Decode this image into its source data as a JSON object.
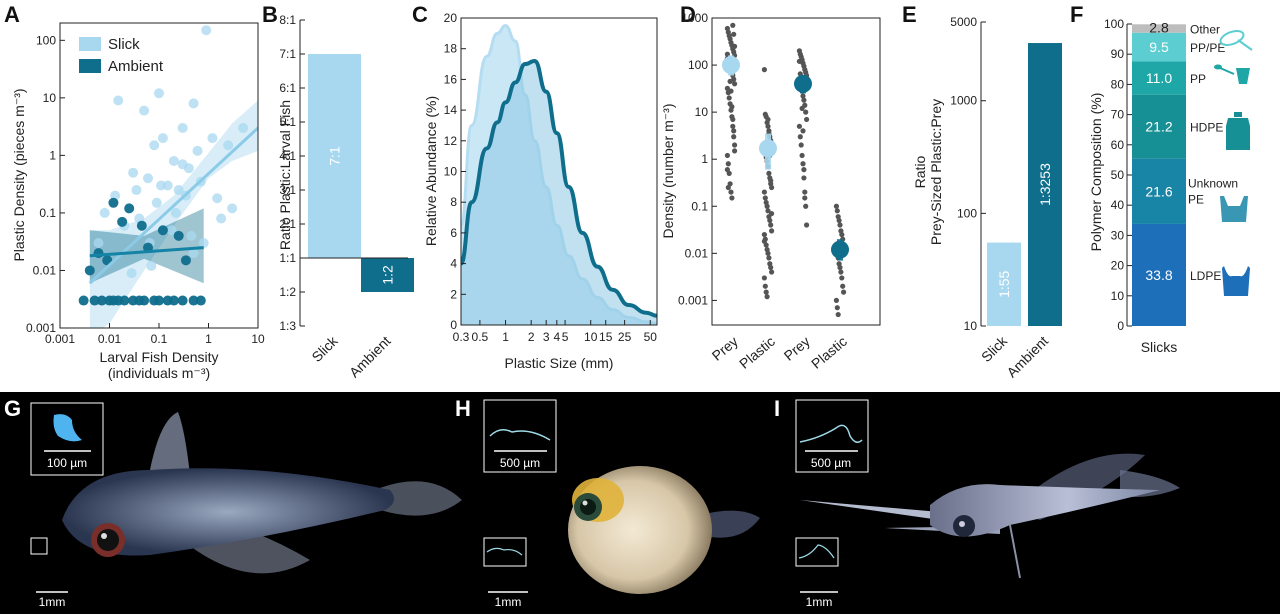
{
  "panel_letters": [
    "A",
    "B",
    "C",
    "D",
    "E",
    "F",
    "G",
    "H",
    "I"
  ],
  "colors": {
    "slick": "#a8d8f0",
    "ambient": "#0f6e8c",
    "point_gray": "#555555"
  },
  "chart_data": [
    {
      "id": "A",
      "type": "scatter",
      "xlabel": "Larval Fish Density",
      "xlabel_unit": "(individuals m⁻³)",
      "ylabel": "Plastic Density (pieces m⁻³)",
      "xscale": "log",
      "yscale": "log",
      "xlim": [
        0.001,
        10
      ],
      "ylim": [
        0.001,
        200
      ],
      "xticks": [
        "0.001",
        "0.01",
        "0.1",
        "1",
        "10"
      ],
      "yticks": [
        "0.001",
        "0.01",
        "0.1",
        "1",
        "10",
        "100"
      ],
      "legend": [
        "Slick",
        "Ambient"
      ],
      "series": [
        {
          "name": "Slick",
          "x": [
            0.9,
            0.015,
            0.05,
            0.1,
            0.5,
            0.3,
            0.12,
            0.08,
            0.2,
            0.4,
            0.6,
            1.2,
            2.5,
            5,
            0.03,
            0.06,
            0.15,
            0.25,
            0.35,
            0.7,
            1.5,
            3,
            0.02,
            0.008,
            0.04,
            0.09,
            0.18,
            0.45,
            0.8,
            0.013,
            0.028,
            0.07,
            0.5,
            1.8,
            0.3,
            0.11,
            0.22,
            0.006,
            0.035,
            0.065
          ],
          "y": [
            150,
            9,
            6,
            12,
            8,
            3,
            2,
            1.5,
            0.8,
            0.6,
            1.2,
            2,
            1.5,
            3,
            0.5,
            0.4,
            0.3,
            0.25,
            0.2,
            0.35,
            0.18,
            0.12,
            0.06,
            0.1,
            0.08,
            0.15,
            0.05,
            0.04,
            0.03,
            0.2,
            0.009,
            0.012,
            0.02,
            0.08,
            0.7,
            0.3,
            0.1,
            0.03,
            0.25,
            0.03
          ]
        },
        {
          "name": "Ambient",
          "x": [
            0.003,
            0.005,
            0.007,
            0.01,
            0.012,
            0.015,
            0.02,
            0.03,
            0.04,
            0.05,
            0.08,
            0.1,
            0.15,
            0.2,
            0.3,
            0.5,
            0.7,
            0.012,
            0.025,
            0.006,
            0.009,
            0.06,
            0.12,
            0.25,
            0.018,
            0.004,
            0.045,
            0.35
          ],
          "y": [
            0.003,
            0.003,
            0.003,
            0.003,
            0.003,
            0.003,
            0.003,
            0.003,
            0.003,
            0.003,
            0.003,
            0.003,
            0.003,
            0.003,
            0.003,
            0.003,
            0.003,
            0.15,
            0.12,
            0.02,
            0.015,
            0.025,
            0.05,
            0.04,
            0.07,
            0.01,
            0.06,
            0.015
          ]
        }
      ],
      "fits": [
        {
          "name": "Slick",
          "x": [
            0.004,
            10
          ],
          "y": [
            0.006,
            3
          ]
        },
        {
          "name": "Ambient",
          "x": [
            0.004,
            0.8
          ],
          "y": [
            0.018,
            0.025
          ]
        }
      ]
    },
    {
      "id": "B",
      "type": "bar",
      "ylabel": "Ratio Plastic:Larval Fish",
      "categories": [
        "Slick",
        "Ambient"
      ],
      "values": [
        7,
        -1
      ],
      "bar_labels": [
        "7:1",
        "1:2"
      ],
      "yticks": [
        "8:1",
        "7:1",
        "6:1",
        "5:1",
        "4:1",
        "3:1",
        "2:1",
        "1:1",
        "1:2",
        "1:3"
      ]
    },
    {
      "id": "C",
      "type": "area",
      "xlabel": "Plastic Size (mm)",
      "ylabel": "Relative Abundance (%)",
      "xscale": "log",
      "xlim": [
        0.3,
        60
      ],
      "ylim": [
        0,
        20
      ],
      "xticks": [
        0.3,
        0.5,
        1,
        2,
        3,
        4,
        5,
        10,
        15,
        25,
        50
      ],
      "xtick_labels": [
        "0.3",
        "0.5",
        "1",
        "2",
        "3",
        "4",
        "5",
        "10",
        "15",
        "25",
        "50"
      ],
      "yticks": [
        "0",
        "2",
        "4",
        "6",
        "8",
        "10",
        "12",
        "14",
        "16",
        "18",
        "20"
      ],
      "series": [
        {
          "name": "Slick",
          "x": [
            0.3,
            0.4,
            0.6,
            0.8,
            1,
            1.3,
            1.7,
            2.2,
            3,
            4,
            5.5,
            8,
            12,
            18,
            28,
            45,
            60
          ],
          "y": [
            6.5,
            13,
            17.5,
            19,
            19.5,
            18.5,
            15,
            12,
            9,
            6.5,
            4.5,
            3,
            1.8,
            1,
            0.5,
            0.2,
            0.1
          ]
        },
        {
          "name": "Ambient",
          "x": [
            0.3,
            0.4,
            0.6,
            0.8,
            1,
            1.3,
            1.7,
            2.2,
            3,
            4,
            5.5,
            8,
            12,
            18,
            28,
            45,
            60
          ],
          "y": [
            4,
            8,
            11.5,
            13.2,
            14.5,
            15.8,
            17,
            17.2,
            15.2,
            12.5,
            9,
            6,
            3.8,
            2.3,
            1.3,
            0.8,
            0.6
          ]
        }
      ]
    },
    {
      "id": "D",
      "type": "scatter",
      "ylabel": "Density (number m⁻³)",
      "yscale": "log",
      "ylim": [
        0.0003,
        1000
      ],
      "yticks": [
        "0.001",
        "0.01",
        "0.1",
        "1",
        "10",
        "100",
        "1000"
      ],
      "categories": [
        "Prey",
        "Plastic",
        "Prey",
        "Plastic"
      ],
      "groups": [
        {
          "name": "Slick",
          "category": "Prey",
          "mean": 100,
          "lo": 60,
          "hi": 160,
          "points": [
            600,
            500,
            420,
            360,
            300,
            260,
            220,
            190,
            160,
            140,
            120,
            100,
            90,
            80,
            70,
            60,
            50,
            40,
            32,
            26,
            20,
            15,
            11,
            8,
            5,
            3,
            2,
            1.2,
            0.8,
            0.5,
            0.3,
            0.2,
            0.15,
            700,
            450,
            250,
            170,
            110,
            75,
            45,
            28,
            13,
            7,
            4,
            1.5,
            0.6,
            0.25
          ]
        },
        {
          "name": "Slick",
          "category": "Plastic",
          "mean": 1.7,
          "lo": 0.6,
          "hi": 3.5,
          "points": [
            80,
            9,
            8,
            6,
            5,
            4,
            3,
            2.5,
            2,
            1.7,
            1.4,
            1.1,
            0.9,
            0.7,
            0.5,
            0.4,
            0.3,
            0.25,
            0.2,
            0.15,
            0.12,
            0.1,
            0.08,
            0.06,
            0.05,
            0.04,
            0.03,
            0.025,
            0.02,
            0.015,
            0.012,
            0.01,
            0.008,
            0.006,
            0.005,
            0.004,
            0.003,
            0.002,
            0.0015,
            0.0012,
            7,
            3.5,
            1.2,
            0.35,
            0.07,
            0.018
          ]
        },
        {
          "name": "Ambient",
          "category": "Prey",
          "mean": 40,
          "lo": 25,
          "hi": 60,
          "points": [
            200,
            170,
            150,
            130,
            110,
            95,
            80,
            70,
            60,
            50,
            42,
            35,
            28,
            22,
            18,
            14,
            10,
            7,
            5,
            3,
            2,
            1.2,
            0.8,
            0.4,
            0.2,
            0.1,
            0.04,
            120,
            65,
            33,
            12,
            4,
            0.6,
            0.15
          ]
        },
        {
          "name": "Ambient",
          "category": "Plastic",
          "mean": 0.012,
          "lo": 0.007,
          "hi": 0.02,
          "points": [
            0.1,
            0.08,
            0.06,
            0.05,
            0.04,
            0.03,
            0.025,
            0.02,
            0.015,
            0.012,
            0.01,
            0.008,
            0.006,
            0.005,
            0.004,
            0.003,
            0.002,
            0.0015,
            0.001,
            0.0007,
            0.0005
          ]
        }
      ]
    },
    {
      "id": "E",
      "type": "bar",
      "ylabel": "Ratio",
      "ylabel2": "Prey-Sized Plastic:Prey",
      "yscale": "log",
      "ylim": [
        10,
        5000
      ],
      "yticks": [
        "10",
        "100",
        "1000",
        "5000"
      ],
      "categories": [
        "Slick",
        "Ambient"
      ],
      "values": [
        55,
        3253
      ],
      "bar_labels": [
        "1:55",
        "1:3253"
      ]
    },
    {
      "id": "F",
      "type": "bar",
      "ylabel": "Polymer Composition (%)",
      "ylim": [
        0,
        100
      ],
      "yticks": [
        "0",
        "10",
        "20",
        "30",
        "40",
        "50",
        "60",
        "70",
        "80",
        "90",
        "100"
      ],
      "categories": [
        "Slicks"
      ],
      "series": [
        {
          "name": "LDPE",
          "value": 33.8,
          "label": "33.8",
          "color": "#1c6fb8"
        },
        {
          "name": "Unknown PE",
          "value": 21.6,
          "label": "21.6",
          "color": "#1885a6"
        },
        {
          "name": "HDPE",
          "value": 21.2,
          "label": "21.2",
          "color": "#169095"
        },
        {
          "name": "PP",
          "value": 11.0,
          "label": "11.0",
          "color": "#1fa6a6"
        },
        {
          "name": "PP/PE",
          "value": 9.5,
          "label": "9.5",
          "color": "#5ccdd0"
        },
        {
          "name": "Other",
          "value": 2.8,
          "label": "2.8",
          "color": "#bdbdbd"
        }
      ]
    }
  ],
  "photos": [
    {
      "id": "G",
      "inset_scale": "100 µm",
      "scale": "1mm"
    },
    {
      "id": "H",
      "inset_scale": "500 µm",
      "scale": "1mm"
    },
    {
      "id": "I",
      "inset_scale": "500 µm",
      "scale": "1mm"
    }
  ]
}
